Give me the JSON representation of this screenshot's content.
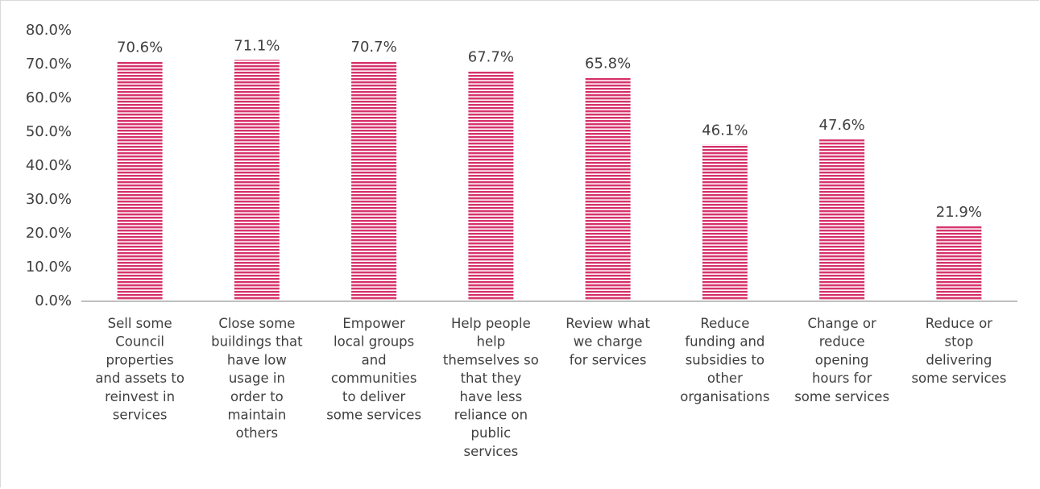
{
  "chart_data": {
    "type": "bar",
    "categories": [
      [
        "Sell some",
        "Council",
        "properties",
        "and assets to",
        "reinvest in",
        "services"
      ],
      [
        "Close some",
        "buildings that",
        "have low",
        "usage in",
        "order to",
        "maintain",
        "others"
      ],
      [
        "Empower",
        "local groups",
        "and",
        "communities",
        "to deliver",
        "some services"
      ],
      [
        "Help people",
        "help",
        "themselves so",
        "that they",
        "have less",
        "reliance on",
        "public",
        "services"
      ],
      [
        "Review what",
        "we charge",
        "for services"
      ],
      [
        "Reduce",
        "funding and",
        "subsidies to",
        "other",
        "organisations"
      ],
      [
        "Change or",
        "reduce",
        "opening",
        "hours for",
        "some services"
      ],
      [
        "Reduce or",
        "stop",
        "delivering",
        "some services"
      ]
    ],
    "values": [
      70.6,
      71.1,
      70.7,
      67.7,
      65.8,
      46.1,
      47.6,
      21.9
    ],
    "data_labels": [
      "70.6%",
      "71.1%",
      "70.7%",
      "67.7%",
      "65.8%",
      "46.1%",
      "47.6%",
      "21.9%"
    ],
    "y_ticks": [
      "0.0%",
      "10.0%",
      "20.0%",
      "30.0%",
      "40.0%",
      "50.0%",
      "60.0%",
      "70.0%",
      "80.0%"
    ],
    "ylim": [
      0,
      80
    ],
    "bar_color": "#d6336c",
    "stripe_color": "#ffffff",
    "grid": false,
    "legend": "none"
  }
}
